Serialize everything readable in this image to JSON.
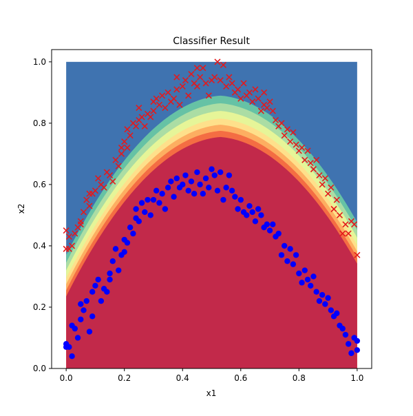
{
  "chart_data": {
    "type": "scatter",
    "title": "Classifier Result",
    "xlabel": "x1",
    "ylabel": "x2",
    "xlim": [
      -0.05,
      1.05
    ],
    "ylim": [
      0.0,
      1.04
    ],
    "xticks": [
      "0.0",
      "0.2",
      "0.4",
      "0.6",
      "0.8",
      "1.0"
    ],
    "yticks": [
      "0.0",
      "0.2",
      "0.4",
      "0.6",
      "0.8",
      "1.0"
    ],
    "grid": false,
    "legend": "none",
    "background": {
      "type": "filled-contour",
      "extent_x": [
        0.0,
        1.0
      ],
      "extent_y": [
        0.0,
        1.0
      ],
      "colormap": "Spectral",
      "band_colors": [
        "#c2294a",
        "#f46d43",
        "#fdae61",
        "#fee08b",
        "#e6f598",
        "#abdda4",
        "#66c2a5",
        "#3f73b0"
      ]
    },
    "series": [
      {
        "marker": "x",
        "color": "#e31a1c",
        "points": [
          [
            0.0,
            0.39
          ],
          [
            0.0,
            0.45
          ],
          [
            0.01,
            0.39
          ],
          [
            0.01,
            0.43
          ],
          [
            0.02,
            0.4
          ],
          [
            0.03,
            0.44
          ],
          [
            0.04,
            0.46
          ],
          [
            0.05,
            0.47
          ],
          [
            0.05,
            0.48
          ],
          [
            0.06,
            0.51
          ],
          [
            0.07,
            0.55
          ],
          [
            0.08,
            0.57
          ],
          [
            0.08,
            0.53
          ],
          [
            0.09,
            0.57
          ],
          [
            0.1,
            0.58
          ],
          [
            0.11,
            0.62
          ],
          [
            0.12,
            0.6
          ],
          [
            0.13,
            0.59
          ],
          [
            0.14,
            0.64
          ],
          [
            0.15,
            0.63
          ],
          [
            0.16,
            0.61
          ],
          [
            0.17,
            0.68
          ],
          [
            0.18,
            0.66
          ],
          [
            0.19,
            0.7
          ],
          [
            0.19,
            0.72
          ],
          [
            0.2,
            0.74
          ],
          [
            0.21,
            0.78
          ],
          [
            0.21,
            0.72
          ],
          [
            0.22,
            0.76
          ],
          [
            0.23,
            0.8
          ],
          [
            0.24,
            0.79
          ],
          [
            0.25,
            0.81
          ],
          [
            0.25,
            0.85
          ],
          [
            0.26,
            0.82
          ],
          [
            0.27,
            0.79
          ],
          [
            0.28,
            0.83
          ],
          [
            0.29,
            0.82
          ],
          [
            0.3,
            0.87
          ],
          [
            0.3,
            0.84
          ],
          [
            0.31,
            0.88
          ],
          [
            0.32,
            0.86
          ],
          [
            0.33,
            0.89
          ],
          [
            0.34,
            0.85
          ],
          [
            0.35,
            0.9
          ],
          [
            0.36,
            0.87
          ],
          [
            0.37,
            0.88
          ],
          [
            0.38,
            0.91
          ],
          [
            0.38,
            0.95
          ],
          [
            0.39,
            0.86
          ],
          [
            0.4,
            0.92
          ],
          [
            0.41,
            0.94
          ],
          [
            0.42,
            0.89
          ],
          [
            0.43,
            0.96
          ],
          [
            0.44,
            0.93
          ],
          [
            0.45,
            0.98
          ],
          [
            0.45,
            0.92
          ],
          [
            0.46,
            0.95
          ],
          [
            0.47,
            0.98
          ],
          [
            0.48,
            0.93
          ],
          [
            0.49,
            0.89
          ],
          [
            0.5,
            0.94
          ],
          [
            0.51,
            0.95
          ],
          [
            0.52,
            1.0
          ],
          [
            0.53,
            0.94
          ],
          [
            0.54,
            0.99
          ],
          [
            0.55,
            0.92
          ],
          [
            0.56,
            0.95
          ],
          [
            0.57,
            0.93
          ],
          [
            0.58,
            0.9
          ],
          [
            0.59,
            0.91
          ],
          [
            0.6,
            0.88
          ],
          [
            0.61,
            0.93
          ],
          [
            0.62,
            0.89
          ],
          [
            0.63,
            0.9
          ],
          [
            0.64,
            0.87
          ],
          [
            0.65,
            0.91
          ],
          [
            0.66,
            0.88
          ],
          [
            0.67,
            0.84
          ],
          [
            0.68,
            0.9
          ],
          [
            0.68,
            0.86
          ],
          [
            0.69,
            0.85
          ],
          [
            0.7,
            0.87
          ],
          [
            0.71,
            0.84
          ],
          [
            0.72,
            0.81
          ],
          [
            0.73,
            0.79
          ],
          [
            0.74,
            0.8
          ],
          [
            0.75,
            0.76
          ],
          [
            0.76,
            0.78
          ],
          [
            0.77,
            0.74
          ],
          [
            0.78,
            0.77
          ],
          [
            0.79,
            0.73
          ],
          [
            0.8,
            0.71
          ],
          [
            0.81,
            0.72
          ],
          [
            0.82,
            0.68
          ],
          [
            0.83,
            0.71
          ],
          [
            0.84,
            0.67
          ],
          [
            0.85,
            0.65
          ],
          [
            0.86,
            0.68
          ],
          [
            0.87,
            0.63
          ],
          [
            0.88,
            0.6
          ],
          [
            0.89,
            0.62
          ],
          [
            0.9,
            0.57
          ],
          [
            0.91,
            0.59
          ],
          [
            0.92,
            0.52
          ],
          [
            0.93,
            0.55
          ],
          [
            0.94,
            0.5
          ],
          [
            0.95,
            0.44
          ],
          [
            0.96,
            0.47
          ],
          [
            0.97,
            0.44
          ],
          [
            0.98,
            0.48
          ],
          [
            0.99,
            0.47
          ],
          [
            1.0,
            0.37
          ]
        ]
      },
      {
        "marker": "o",
        "color": "#0000ff",
        "points": [
          [
            0.0,
            0.07
          ],
          [
            0.0,
            0.08
          ],
          [
            0.01,
            0.07
          ],
          [
            0.02,
            0.14
          ],
          [
            0.02,
            0.04
          ],
          [
            0.03,
            0.13
          ],
          [
            0.04,
            0.1
          ],
          [
            0.05,
            0.16
          ],
          [
            0.05,
            0.21
          ],
          [
            0.06,
            0.19
          ],
          [
            0.07,
            0.22
          ],
          [
            0.08,
            0.12
          ],
          [
            0.09,
            0.17
          ],
          [
            0.09,
            0.25
          ],
          [
            0.1,
            0.27
          ],
          [
            0.11,
            0.29
          ],
          [
            0.12,
            0.22
          ],
          [
            0.13,
            0.26
          ],
          [
            0.14,
            0.25
          ],
          [
            0.15,
            0.31
          ],
          [
            0.15,
            0.29
          ],
          [
            0.16,
            0.35
          ],
          [
            0.17,
            0.39
          ],
          [
            0.18,
            0.32
          ],
          [
            0.19,
            0.37
          ],
          [
            0.2,
            0.42
          ],
          [
            0.2,
            0.38
          ],
          [
            0.21,
            0.41
          ],
          [
            0.22,
            0.46
          ],
          [
            0.23,
            0.44
          ],
          [
            0.24,
            0.49
          ],
          [
            0.24,
            0.52
          ],
          [
            0.25,
            0.48
          ],
          [
            0.26,
            0.54
          ],
          [
            0.27,
            0.51
          ],
          [
            0.28,
            0.55
          ],
          [
            0.29,
            0.5
          ],
          [
            0.3,
            0.55
          ],
          [
            0.31,
            0.58
          ],
          [
            0.32,
            0.54
          ],
          [
            0.33,
            0.57
          ],
          [
            0.34,
            0.52
          ],
          [
            0.35,
            0.59
          ],
          [
            0.36,
            0.61
          ],
          [
            0.37,
            0.56
          ],
          [
            0.38,
            0.62
          ],
          [
            0.39,
            0.59
          ],
          [
            0.4,
            0.6
          ],
          [
            0.41,
            0.63
          ],
          [
            0.42,
            0.58
          ],
          [
            0.43,
            0.61
          ],
          [
            0.44,
            0.57
          ],
          [
            0.45,
            0.64
          ],
          [
            0.46,
            0.6
          ],
          [
            0.47,
            0.57
          ],
          [
            0.48,
            0.62
          ],
          [
            0.49,
            0.59
          ],
          [
            0.5,
            0.65
          ],
          [
            0.51,
            0.63
          ],
          [
            0.52,
            0.58
          ],
          [
            0.53,
            0.64
          ],
          [
            0.54,
            0.55
          ],
          [
            0.55,
            0.59
          ],
          [
            0.56,
            0.63
          ],
          [
            0.57,
            0.58
          ],
          [
            0.58,
            0.56
          ],
          [
            0.59,
            0.52
          ],
          [
            0.6,
            0.55
          ],
          [
            0.61,
            0.51
          ],
          [
            0.62,
            0.5
          ],
          [
            0.63,
            0.53
          ],
          [
            0.64,
            0.51
          ],
          [
            0.65,
            0.48
          ],
          [
            0.66,
            0.52
          ],
          [
            0.67,
            0.5
          ],
          [
            0.68,
            0.46
          ],
          [
            0.69,
            0.47
          ],
          [
            0.7,
            0.45
          ],
          [
            0.71,
            0.47
          ],
          [
            0.72,
            0.43
          ],
          [
            0.73,
            0.44
          ],
          [
            0.74,
            0.37
          ],
          [
            0.75,
            0.4
          ],
          [
            0.76,
            0.35
          ],
          [
            0.77,
            0.39
          ],
          [
            0.78,
            0.34
          ],
          [
            0.79,
            0.37
          ],
          [
            0.8,
            0.31
          ],
          [
            0.81,
            0.28
          ],
          [
            0.82,
            0.32
          ],
          [
            0.83,
            0.29
          ],
          [
            0.84,
            0.27
          ],
          [
            0.85,
            0.3
          ],
          [
            0.86,
            0.25
          ],
          [
            0.87,
            0.22
          ],
          [
            0.88,
            0.24
          ],
          [
            0.89,
            0.21
          ],
          [
            0.9,
            0.23
          ],
          [
            0.91,
            0.19
          ],
          [
            0.92,
            0.17
          ],
          [
            0.93,
            0.18
          ],
          [
            0.94,
            0.14
          ],
          [
            0.95,
            0.13
          ],
          [
            0.96,
            0.11
          ],
          [
            0.97,
            0.08
          ],
          [
            0.98,
            0.05
          ],
          [
            0.99,
            0.1
          ],
          [
            1.0,
            0.09
          ],
          [
            1.0,
            0.06
          ]
        ]
      }
    ]
  }
}
